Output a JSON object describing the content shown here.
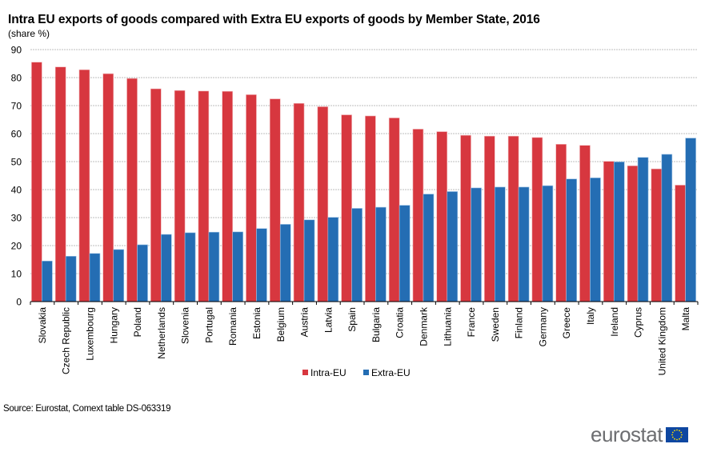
{
  "chart_data": {
    "type": "bar",
    "title": "Intra EU exports of goods compared with Extra EU exports of goods by Member State, 2016",
    "subtitle": "(share %)",
    "xlabel": "",
    "ylabel": "(share %)",
    "ylim": [
      0,
      90
    ],
    "yticks": [
      0,
      10,
      20,
      30,
      40,
      50,
      60,
      70,
      80,
      90
    ],
    "grid": true,
    "legend_position": "bottom-center",
    "categories": [
      "Slovakia",
      "Czech Republic",
      "Luxembourg",
      "Hungary",
      "Poland",
      "Netherlands",
      "Slovenia",
      "Portugal",
      "Romania",
      "Estonia",
      "Belgium",
      "Austria",
      "Latvia",
      "Spain",
      "Bulgaria",
      "Croatia",
      "Denmark",
      "Lithuania",
      "France",
      "Sweden",
      "Finland",
      "Germany",
      "Greece",
      "Italy",
      "Ireland",
      "Cyprus",
      "United Kingdom",
      "Malta"
    ],
    "series": [
      {
        "name": "Intra-EU",
        "color": "#d7373f",
        "values": [
          85.5,
          83.8,
          82.8,
          81.4,
          79.7,
          76.0,
          75.4,
          75.2,
          75.1,
          73.9,
          72.4,
          70.8,
          69.6,
          66.7,
          66.3,
          65.6,
          61.6,
          60.7,
          59.4,
          59.1,
          59.1,
          58.6,
          56.2,
          55.8,
          50.1,
          48.5,
          47.4,
          41.6
        ]
      },
      {
        "name": "Extra-EU",
        "color": "#246db3",
        "values": [
          14.5,
          16.2,
          17.2,
          18.6,
          20.3,
          24.0,
          24.6,
          24.8,
          24.9,
          26.1,
          27.6,
          29.2,
          30.1,
          33.3,
          33.7,
          34.4,
          38.4,
          39.3,
          40.6,
          40.9,
          40.9,
          41.4,
          43.8,
          44.2,
          49.9,
          51.5,
          52.6,
          58.4
        ]
      }
    ]
  },
  "footer": {
    "source": "Source: Eurostat, Comext table DS-063319",
    "logo_text": "eurostat"
  }
}
